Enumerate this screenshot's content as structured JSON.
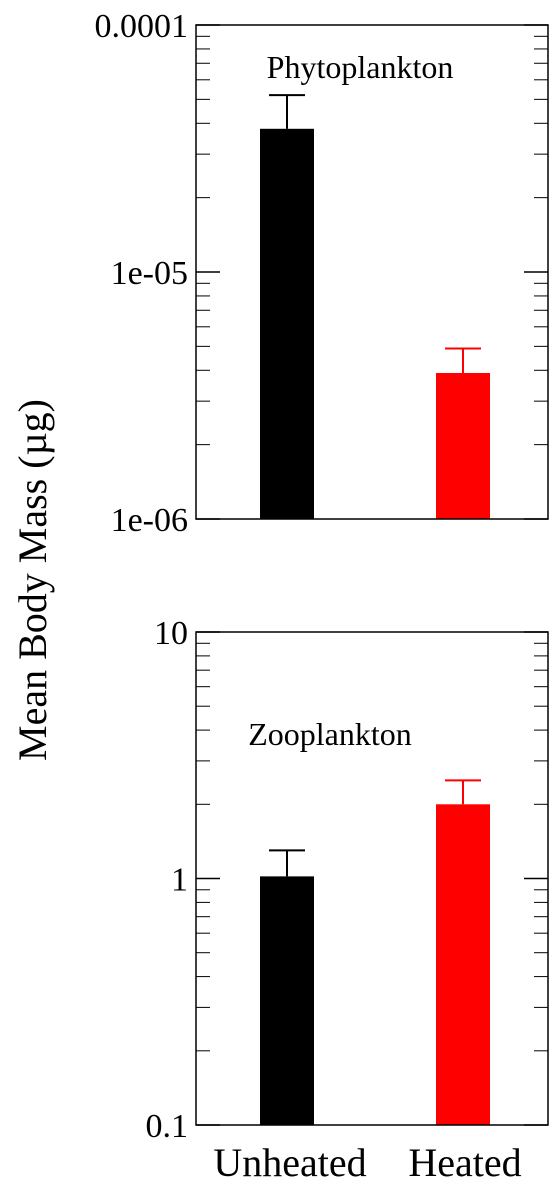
{
  "ylabel": "Mean Body Mass (µg)",
  "colors": {
    "unheated": "#000000",
    "heated": "#ff0000",
    "axis": "#000000"
  },
  "categories": [
    "Unheated",
    "Heated"
  ],
  "chart_data": [
    {
      "type": "bar",
      "panel_label": "Phytoplankton",
      "categories": [
        "Unheated",
        "Heated"
      ],
      "values": [
        3.8e-05,
        3.9e-06
      ],
      "error_upper": [
        5.2e-05,
        4.9e-06
      ],
      "ylabel": "Mean Body Mass (µg)",
      "yscale": "log",
      "ylim": [
        1e-06,
        0.0001
      ],
      "yticks": [
        "1e-06",
        "1e-05",
        "0.0001"
      ],
      "grid": false,
      "legend": "none"
    },
    {
      "type": "bar",
      "panel_label": "Zooplankton",
      "categories": [
        "Unheated",
        "Heated"
      ],
      "values": [
        1.02,
        2.0
      ],
      "error_upper": [
        1.3,
        2.5
      ],
      "ylabel": "Mean Body Mass (µg)",
      "yscale": "log",
      "ylim": [
        0.1,
        10
      ],
      "yticks": [
        "0.1",
        "1",
        "10"
      ],
      "grid": false,
      "legend": "none"
    }
  ]
}
